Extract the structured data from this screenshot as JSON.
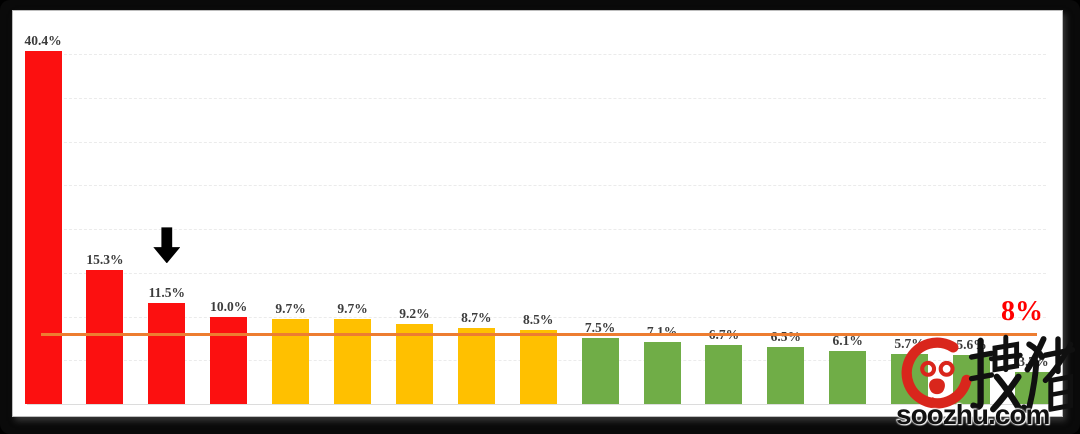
{
  "chart_data": {
    "type": "bar",
    "labels": [
      "40.4%",
      "15.3%",
      "11.5%",
      "10.0%",
      "9.7%",
      "9.7%",
      "9.2%",
      "8.7%",
      "8.5%",
      "7.5%",
      "7.1%",
      "6.7%",
      "6.5%",
      "6.1%",
      "5.7%",
      "5.6%",
      "3.7%"
    ],
    "values": [
      40.4,
      15.3,
      11.5,
      10.0,
      9.7,
      9.7,
      9.2,
      8.7,
      8.5,
      7.5,
      7.1,
      6.7,
      6.5,
      6.1,
      5.7,
      5.6,
      3.7
    ],
    "bar_color_groups": [
      "red",
      "red",
      "red",
      "red",
      "yellow",
      "yellow",
      "yellow",
      "yellow",
      "yellow",
      "green",
      "green",
      "green",
      "green",
      "green",
      "green",
      "green",
      "green"
    ],
    "color_map": {
      "red": "#fc1010",
      "yellow": "#ffc000",
      "green": "#70ad47"
    },
    "label_color": "#3c3c3c",
    "threshold_line": {
      "value": 8,
      "label": "8%",
      "line_color": "#ed7d31",
      "label_color": "#ff0000"
    },
    "annotation": {
      "type": "down-arrow",
      "bar_index": 2,
      "color": "#000000"
    },
    "gridline_values": [
      5,
      10,
      15,
      20,
      25,
      30,
      35,
      40
    ],
    "ylim": [
      0,
      42
    ],
    "grid": "dashed",
    "title": "",
    "xlabel": "",
    "ylabel": "",
    "legend": "none"
  },
  "watermark": {
    "logo": "soozhu-pig-logo",
    "cjk_text": "搜猪",
    "domain": "soozhu.com",
    "logo_color": "#d9261c",
    "text_color": "#111111"
  }
}
